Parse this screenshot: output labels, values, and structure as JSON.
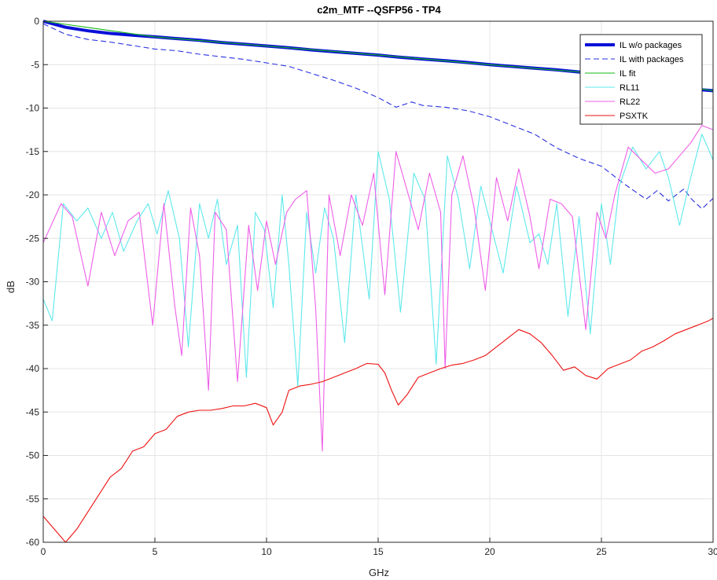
{
  "chart_data": {
    "type": "line",
    "title": "c2m_MTF --QSFP56 - TP4",
    "xlabel": "GHz",
    "ylabel": "dB",
    "xlim": [
      0,
      30
    ],
    "ylim": [
      -60,
      0
    ],
    "xticks": [
      0,
      5,
      10,
      15,
      20,
      25,
      30
    ],
    "yticks": [
      0,
      -5,
      -10,
      -15,
      -20,
      -25,
      -30,
      -35,
      -40,
      -45,
      -50,
      -55,
      -60
    ],
    "xtick_labels": [
      "0",
      "5",
      "10",
      "15",
      "20",
      "25",
      "30"
    ],
    "ytick_labels": [
      "0",
      "-5",
      "-10",
      "-15",
      "-20",
      "-25",
      "-30",
      "-35",
      "-40",
      "-45",
      "-50",
      "-55",
      "-60"
    ],
    "grid": true,
    "legend_position": "top-right",
    "series": [
      {
        "name": "IL w/o packages",
        "color": "#0a10d8",
        "style": "solid-thick",
        "x": [
          0,
          1,
          2,
          3,
          4,
          5,
          6,
          7,
          8,
          9,
          10,
          11,
          12,
          13,
          14,
          15,
          16,
          17,
          18,
          19,
          20,
          21,
          22,
          23,
          24,
          25,
          26,
          27,
          28,
          29,
          30
        ],
        "y": [
          0,
          -0.7,
          -1.1,
          -1.4,
          -1.6,
          -1.8,
          -2.0,
          -2.2,
          -2.45,
          -2.65,
          -2.85,
          -3.05,
          -3.3,
          -3.5,
          -3.7,
          -3.9,
          -4.15,
          -4.35,
          -4.55,
          -4.75,
          -5.0,
          -5.2,
          -5.4,
          -5.6,
          -5.85,
          -6.05,
          -6.3,
          -6.8,
          -7.3,
          -7.8,
          -8.0
        ]
      },
      {
        "name": "IL with packages",
        "color": "#2a30e0",
        "style": "dashed",
        "x": [
          0,
          1,
          2,
          3,
          4,
          5,
          6,
          7,
          8,
          9,
          10,
          11,
          12,
          13,
          14,
          15,
          15.8,
          16.5,
          17,
          18,
          19,
          20,
          21,
          22,
          23,
          24,
          25,
          25.5,
          26,
          27,
          27.5,
          28,
          28.7,
          29,
          29.5,
          30
        ],
        "y": [
          -0.3,
          -1.5,
          -2.1,
          -2.4,
          -2.8,
          -3.2,
          -3.4,
          -3.8,
          -4.1,
          -4.4,
          -4.8,
          -5.2,
          -6.0,
          -6.8,
          -7.7,
          -8.8,
          -9.9,
          -9.3,
          -9.7,
          -9.9,
          -10.3,
          -11.0,
          -12.0,
          -13.0,
          -14.6,
          -15.8,
          -16.7,
          -17.7,
          -18.7,
          -20.5,
          -19.5,
          -20.7,
          -19.3,
          -20.4,
          -21.6,
          -20.4
        ]
      },
      {
        "name": "IL fit",
        "color": "#14b814",
        "style": "solid",
        "x": [
          0,
          5,
          10,
          15,
          20,
          25,
          30
        ],
        "y": [
          0,
          -1.8,
          -2.85,
          -3.9,
          -5.0,
          -6.05,
          -8.0
        ]
      },
      {
        "name": "RL11",
        "color": "#5ee8ec",
        "style": "solid",
        "x": [
          0,
          0.4,
          0.9,
          1.5,
          2.0,
          2.6,
          3.1,
          3.6,
          4.2,
          4.7,
          5.1,
          5.6,
          6.1,
          6.5,
          7.0,
          7.4,
          7.8,
          8.2,
          8.7,
          9.1,
          9.5,
          9.9,
          10.3,
          10.7,
          11.0,
          11.4,
          11.8,
          12.2,
          12.6,
          13.0,
          13.5,
          14.0,
          14.6,
          15.0,
          15.5,
          16.0,
          16.6,
          17.1,
          17.6,
          18.1,
          18.6,
          19.1,
          19.6,
          20.1,
          20.6,
          21.2,
          21.8,
          22.2,
          22.6,
          23.0,
          23.5,
          24.0,
          24.5,
          25.0,
          25.4,
          25.8,
          26.4,
          27.0,
          27.6,
          28.0,
          28.5,
          29.0,
          29.5,
          30.0
        ],
        "y": [
          -32.0,
          -34.5,
          -21.0,
          -23.0,
          -21.5,
          -25.0,
          -22.0,
          -26.5,
          -23.0,
          -21.0,
          -24.5,
          -19.5,
          -25.0,
          -37.5,
          -21.0,
          -25.0,
          -20.5,
          -28.0,
          -23.5,
          -41.0,
          -22.0,
          -24.0,
          -33.0,
          -20.0,
          -28.0,
          -42.0,
          -22.0,
          -29.0,
          -21.5,
          -25.0,
          -37.0,
          -20.0,
          -32.0,
          -15.0,
          -20.5,
          -33.5,
          -17.5,
          -20.5,
          -39.5,
          -15.5,
          -20.5,
          -28.5,
          -19.0,
          -24.0,
          -29.0,
          -19.0,
          -25.5,
          -24.5,
          -28.0,
          -21.0,
          -34.0,
          -22.5,
          -36.0,
          -21.0,
          -28.0,
          -19.0,
          -14.5,
          -17.0,
          -15.0,
          -18.0,
          -23.5,
          -18.0,
          -13.0,
          -16.0
        ]
      },
      {
        "name": "RL22",
        "color": "#ee5ee8",
        "style": "solid",
        "x": [
          0,
          0.8,
          1.3,
          2.0,
          2.6,
          3.2,
          3.8,
          4.3,
          4.9,
          5.4,
          5.9,
          6.2,
          6.6,
          7.0,
          7.4,
          7.7,
          8.2,
          8.7,
          9.2,
          9.6,
          10.0,
          10.4,
          10.9,
          11.3,
          11.8,
          12.2,
          12.5,
          12.8,
          13.3,
          13.8,
          14.3,
          14.8,
          15.3,
          15.8,
          16.3,
          16.8,
          17.3,
          17.8,
          18.0,
          18.3,
          18.8,
          19.3,
          19.8,
          20.3,
          20.8,
          21.3,
          21.8,
          22.2,
          22.7,
          23.2,
          23.7,
          24.3,
          24.8,
          25.2,
          25.6,
          26.2,
          26.8,
          27.4,
          28.0,
          28.5,
          29.0,
          29.5,
          30.0
        ],
        "y": [
          -25.5,
          -21.0,
          -22.5,
          -30.5,
          -22.0,
          -27.0,
          -23.0,
          -22.0,
          -35.0,
          -21.0,
          -33.0,
          -38.5,
          -21.5,
          -27.0,
          -42.5,
          -22.0,
          -24.0,
          -41.5,
          -23.5,
          -31.0,
          -23.0,
          -28.0,
          -22.0,
          -20.5,
          -19.5,
          -33.0,
          -49.5,
          -20.0,
          -27.0,
          -20.0,
          -23.5,
          -17.5,
          -31.5,
          -15.0,
          -19.5,
          -24.0,
          -17.5,
          -22.0,
          -40.0,
          -20.0,
          -15.5,
          -21.5,
          -31.0,
          -18.0,
          -23.0,
          -17.0,
          -22.5,
          -28.5,
          -20.5,
          -21.0,
          -22.5,
          -35.5,
          -22.0,
          -25.0,
          -20.0,
          -14.5,
          -16.0,
          -17.5,
          -17.0,
          -15.5,
          -14.0,
          -12.0,
          -12.5
        ]
      },
      {
        "name": "PSXTK",
        "color": "#ee1010",
        "style": "solid",
        "x": [
          0,
          1.0,
          1.5,
          2.0,
          2.5,
          3.0,
          3.5,
          4.0,
          4.5,
          5.0,
          5.5,
          6.0,
          6.5,
          7.0,
          7.5,
          8.0,
          8.5,
          9.0,
          9.5,
          10.0,
          10.3,
          10.7,
          11.0,
          11.5,
          12.0,
          12.5,
          13.0,
          13.5,
          14.0,
          14.5,
          15.0,
          15.3,
          15.6,
          15.9,
          16.3,
          16.8,
          17.3,
          17.8,
          18.3,
          18.8,
          19.3,
          19.8,
          20.3,
          20.8,
          21.3,
          21.8,
          22.3,
          22.8,
          23.3,
          23.8,
          24.3,
          24.8,
          25.3,
          25.8,
          26.3,
          26.8,
          27.3,
          27.8,
          28.3,
          28.8,
          29.3,
          29.8,
          30.0
        ],
        "y": [
          -57.0,
          -60.0,
          -58.5,
          -56.5,
          -54.5,
          -52.5,
          -51.5,
          -49.5,
          -49.0,
          -47.5,
          -47.0,
          -45.5,
          -45.0,
          -44.8,
          -44.8,
          -44.6,
          -44.3,
          -44.3,
          -44.0,
          -44.5,
          -46.5,
          -45.0,
          -42.5,
          -42.0,
          -41.8,
          -41.5,
          -41.0,
          -40.5,
          -40.0,
          -39.4,
          -39.5,
          -40.5,
          -42.5,
          -44.2,
          -43.0,
          -41.0,
          -40.5,
          -40.0,
          -39.6,
          -39.4,
          -39.0,
          -38.5,
          -37.5,
          -36.5,
          -35.5,
          -36.0,
          -37.0,
          -38.5,
          -40.2,
          -39.8,
          -40.8,
          -41.2,
          -40.0,
          -39.5,
          -39.0,
          -38.0,
          -37.5,
          -36.8,
          -36.0,
          -35.5,
          -35.0,
          -34.5,
          -34.2
        ]
      }
    ]
  }
}
